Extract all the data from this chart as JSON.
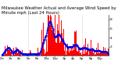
{
  "title": "Milwaukee Weather Actual and Average Wind Speed by Minute mph (Last 24 Hours)",
  "title_fontsize": 3.8,
  "background_color": "#ffffff",
  "bar_color": "#ff0000",
  "avg_color": "#0000ee",
  "n_points": 1440,
  "ylim": [
    0,
    9
  ],
  "yticks": [
    2,
    4,
    6,
    8
  ],
  "grid_color": "#999999",
  "ylabel_fontsize": 3.2,
  "xlabel_fontsize": 3.0,
  "n_gridlines": 3
}
